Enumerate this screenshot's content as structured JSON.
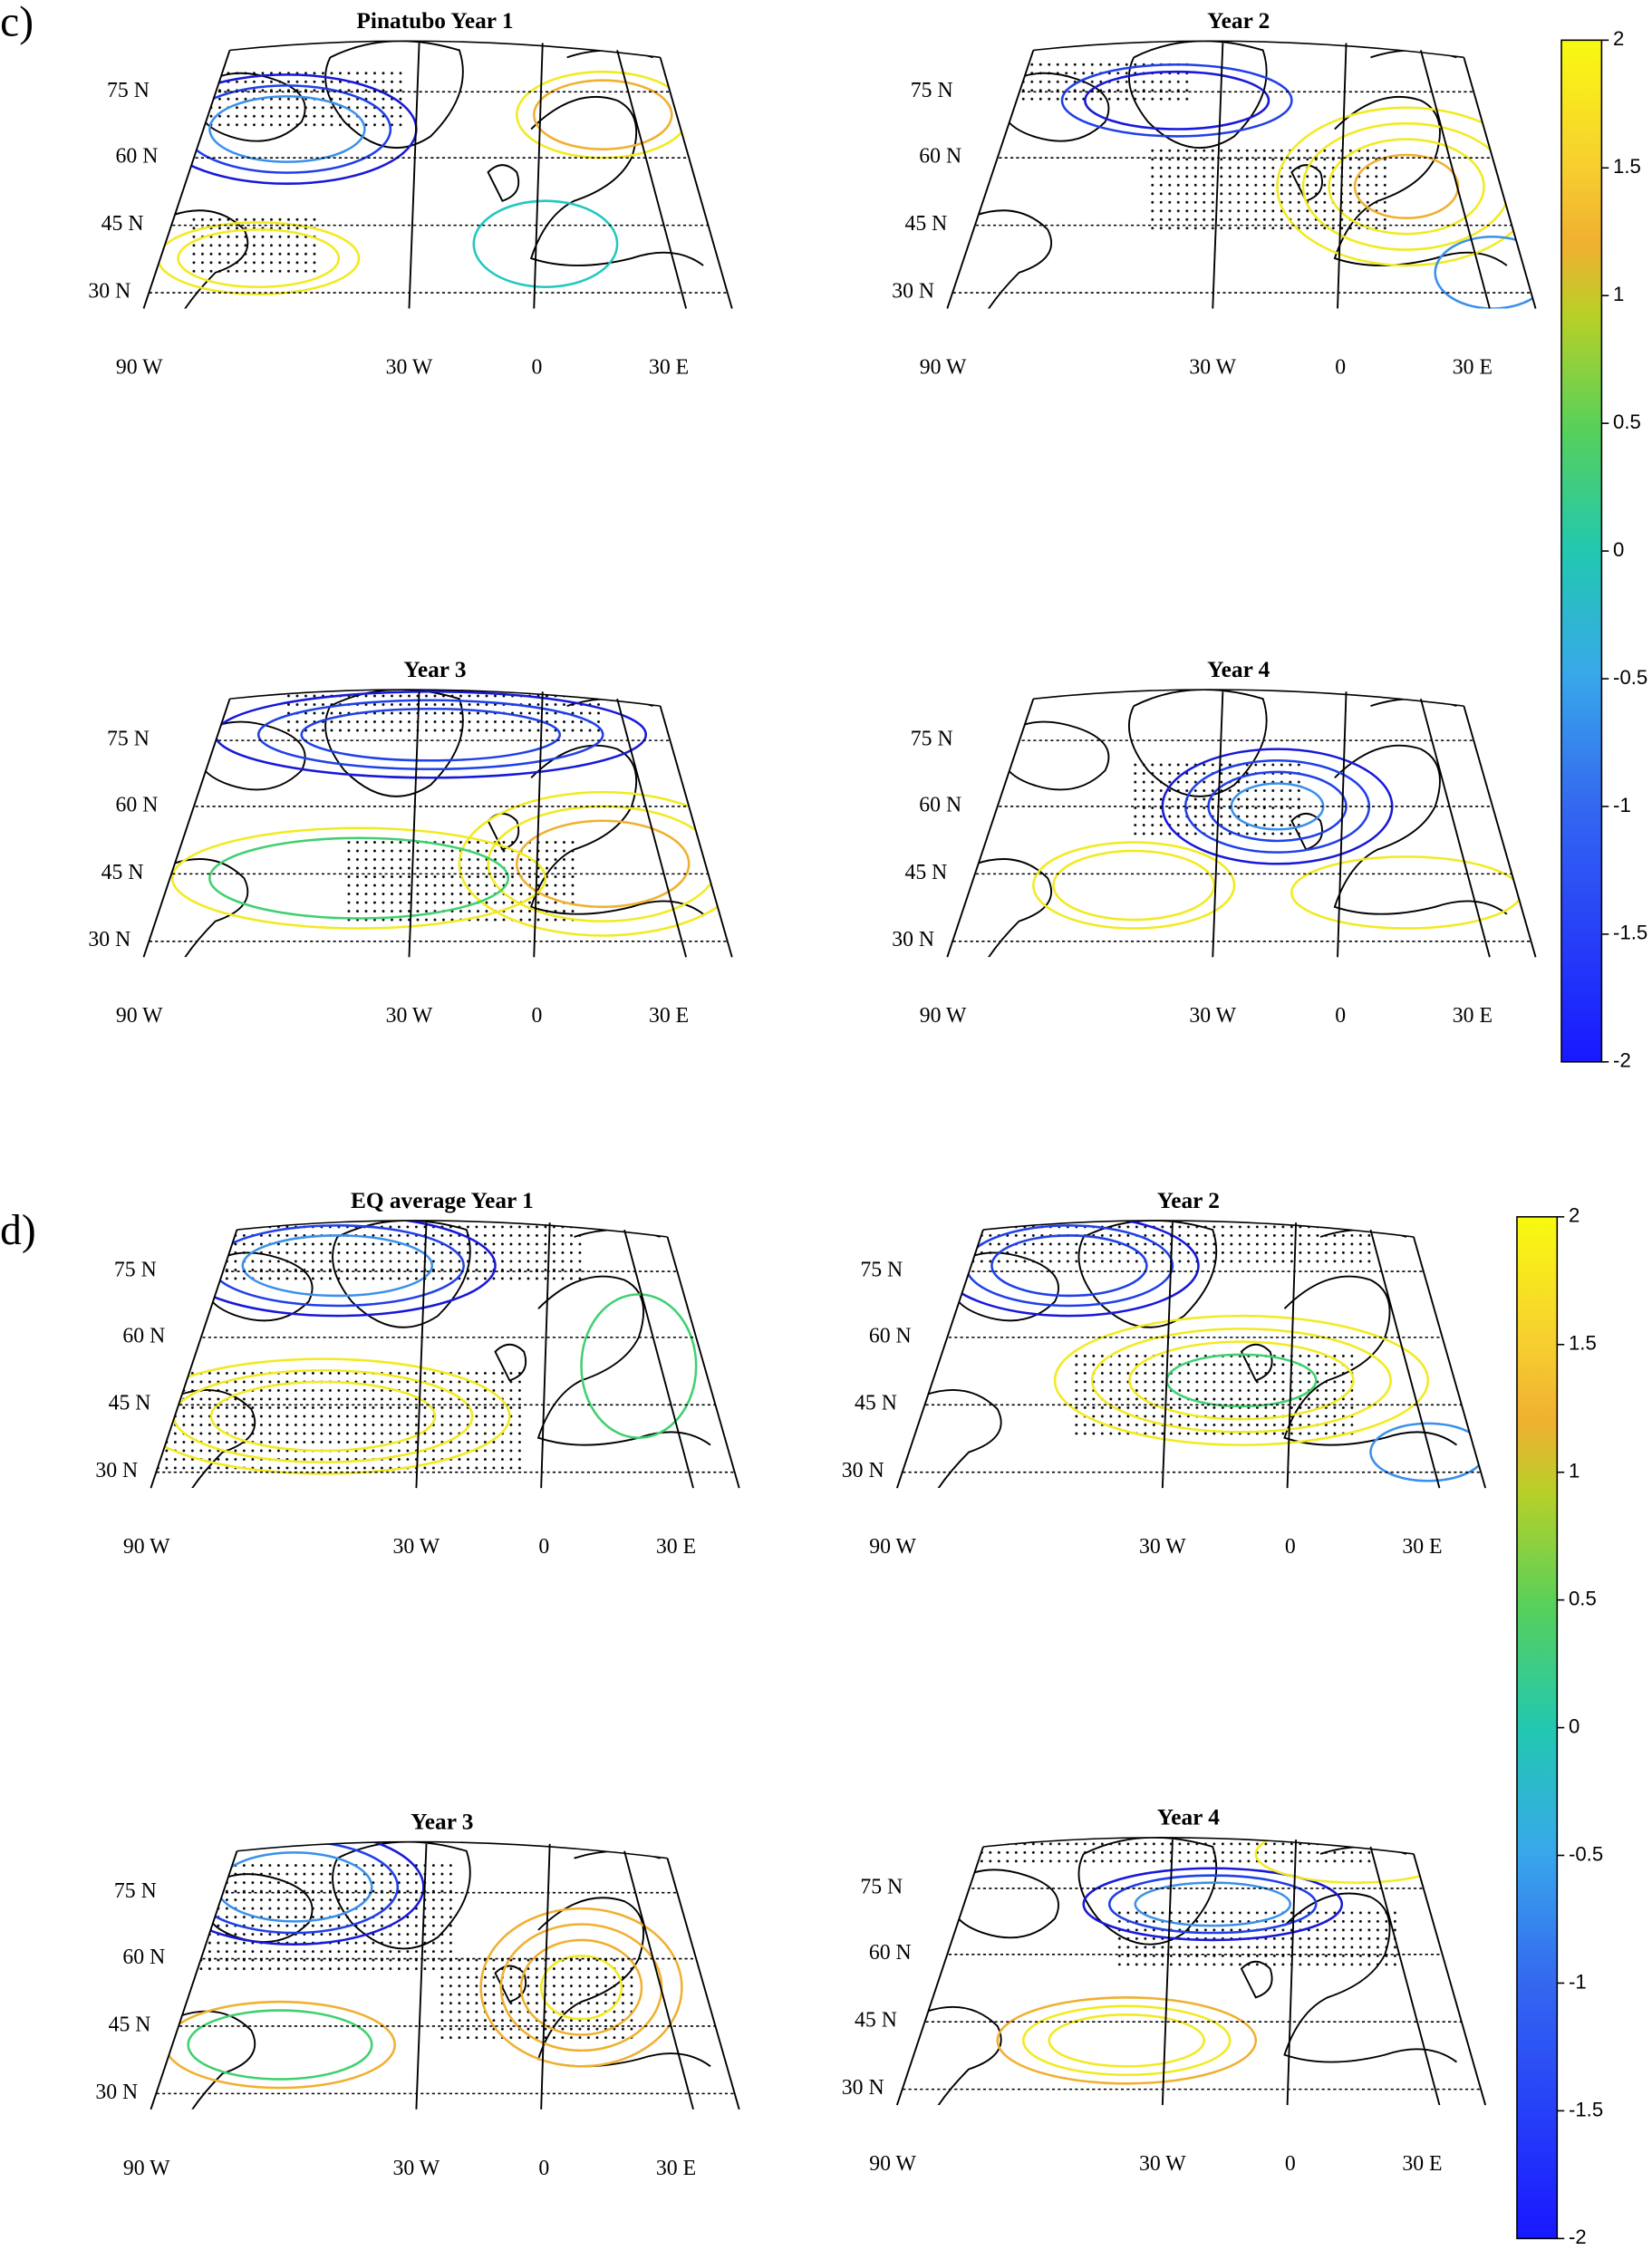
{
  "panels": [
    {
      "label": "c)",
      "clim": [
        -2,
        2
      ],
      "ticks": [
        2,
        1.5,
        1,
        0.5,
        0,
        -0.5,
        -1,
        -1.5,
        -2
      ],
      "maps": [
        {
          "title": "Pinatubo Year 1",
          "lat_labels": [
            "75 N",
            "60 N",
            "45 N",
            "30 N"
          ],
          "lon_labels": [
            "90 W",
            "30 W",
            "0",
            "30 E"
          ]
        },
        {
          "title": "Year 2",
          "lat_labels": [
            "75 N",
            "60 N",
            "45 N",
            "30 N"
          ],
          "lon_labels": [
            "90 W",
            "30 W",
            "0",
            "30 E"
          ]
        },
        {
          "title": "Year 3",
          "lat_labels": [
            "75 N",
            "60 N",
            "45 N",
            "30 N"
          ],
          "lon_labels": [
            "90 W",
            "30 W",
            "0",
            "30 E"
          ]
        },
        {
          "title": "Year 4",
          "lat_labels": [
            "75 N",
            "60 N",
            "45 N",
            "30 N"
          ],
          "lon_labels": [
            "90 W",
            "30 W",
            "0",
            "30 E"
          ]
        }
      ]
    },
    {
      "label": "d)",
      "clim": [
        -2,
        2
      ],
      "ticks": [
        2,
        1.5,
        1,
        0.5,
        0,
        -0.5,
        -1,
        -1.5,
        -2
      ],
      "maps": [
        {
          "title": "EQ average Year 1",
          "lat_labels": [
            "75 N",
            "60 N",
            "45 N",
            "30 N"
          ],
          "lon_labels": [
            "90 W",
            "30 W",
            "0",
            "30 E"
          ]
        },
        {
          "title": "Year 2",
          "lat_labels": [
            "75 N",
            "60 N",
            "45 N",
            "30 N"
          ],
          "lon_labels": [
            "90 W",
            "30 W",
            "0",
            "30 E"
          ]
        },
        {
          "title": "Year 3",
          "lat_labels": [
            "75 N",
            "60 N",
            "45 N",
            "30 N"
          ],
          "lon_labels": [
            "90 W",
            "30 W",
            "0",
            "30 E"
          ]
        },
        {
          "title": "Year 4",
          "lat_labels": [
            "75 N",
            "60 N",
            "45 N",
            "30 N"
          ],
          "lon_labels": [
            "90 W",
            "30 W",
            "0",
            "30 E"
          ]
        }
      ]
    }
  ]
}
